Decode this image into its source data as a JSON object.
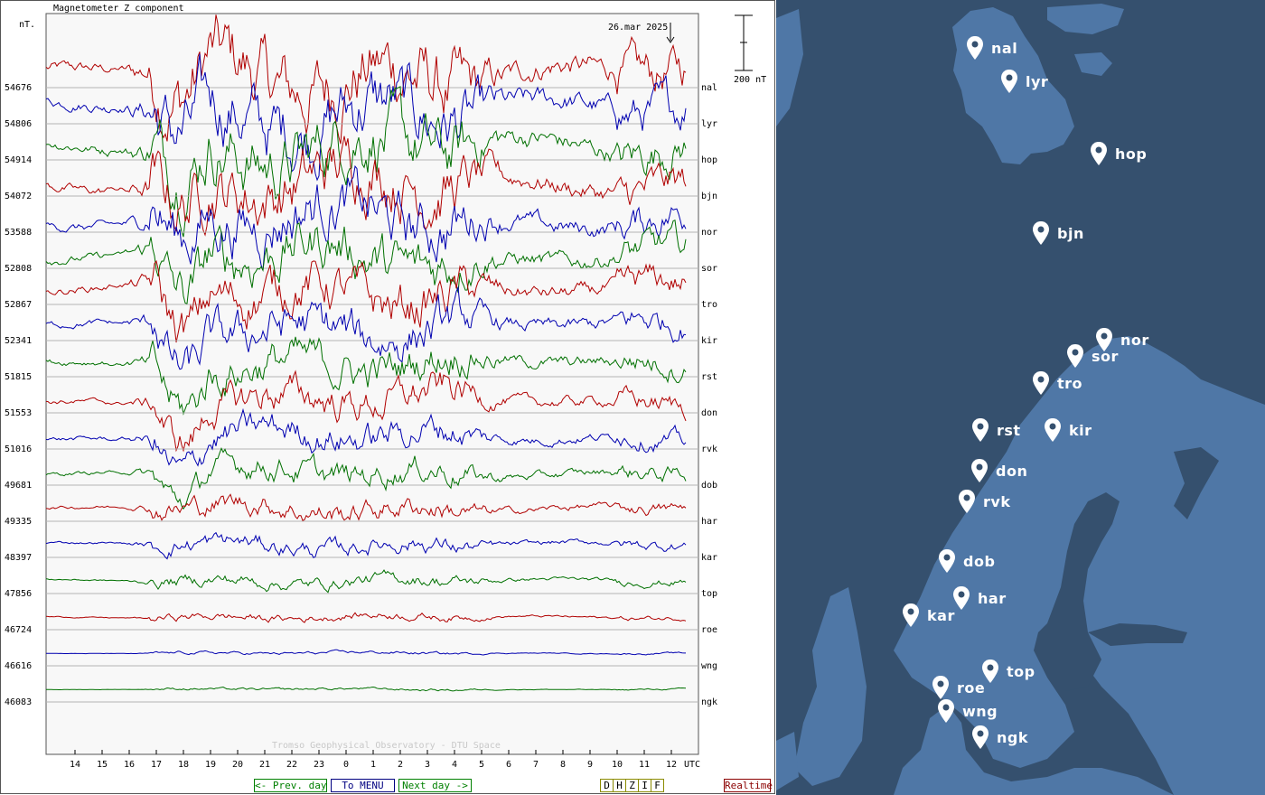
{
  "plot": {
    "title": "Magnetometer Z component",
    "unit_label": "nT.",
    "date": "26.mar 2025",
    "scale_label": "200 nT",
    "watermark": "Tromso Geophysical Observatory - DTU Space",
    "utc_label": "UTC",
    "hour_ticks": [
      "14",
      "15",
      "16",
      "17",
      "18",
      "19",
      "20",
      "21",
      "22",
      "23",
      "0",
      "1",
      "2",
      "3",
      "4",
      "5",
      "6",
      "7",
      "8",
      "9",
      "10",
      "11",
      "12"
    ]
  },
  "stations": [
    {
      "code": "nal",
      "baseline": "54676",
      "color": "#b00000"
    },
    {
      "code": "lyr",
      "baseline": "54806",
      "color": "#0000b0"
    },
    {
      "code": "hop",
      "baseline": "54914",
      "color": "#007000"
    },
    {
      "code": "bjn",
      "baseline": "54072",
      "color": "#b00000"
    },
    {
      "code": "nor",
      "baseline": "53588",
      "color": "#0000b0"
    },
    {
      "code": "sor",
      "baseline": "52808",
      "color": "#007000"
    },
    {
      "code": "tro",
      "baseline": "52867",
      "color": "#b00000"
    },
    {
      "code": "kir",
      "baseline": "52341",
      "color": "#0000b0"
    },
    {
      "code": "rst",
      "baseline": "51815",
      "color": "#007000"
    },
    {
      "code": "don",
      "baseline": "51553",
      "color": "#b00000"
    },
    {
      "code": "rvk",
      "baseline": "51016",
      "color": "#0000b0"
    },
    {
      "code": "dob",
      "baseline": "49681",
      "color": "#007000"
    },
    {
      "code": "har",
      "baseline": "49335",
      "color": "#b00000"
    },
    {
      "code": "kar",
      "baseline": "48397",
      "color": "#0000b0"
    },
    {
      "code": "top",
      "baseline": "47856",
      "color": "#007000"
    },
    {
      "code": "roe",
      "baseline": "46724",
      "color": "#b00000"
    },
    {
      "code": "wng",
      "baseline": "46616",
      "color": "#0000b0"
    },
    {
      "code": "ngk",
      "baseline": "46083",
      "color": "#007000"
    }
  ],
  "nav": {
    "prev_label": "<- Prev. day",
    "menu_label": "To MENU",
    "next_label": "Next day ->",
    "components": [
      "D",
      "H",
      "Z",
      "I",
      "F"
    ],
    "realtime_label": "Realtime"
  },
  "map": {
    "stations": [
      "nal",
      "lyr",
      "hop",
      "bjn",
      "nor",
      "sor",
      "tro",
      "rst",
      "kir",
      "don",
      "rvk",
      "dob",
      "har",
      "kar",
      "top",
      "roe",
      "wng",
      "ngk"
    ]
  },
  "colors": {
    "map_sea": "#35506e",
    "map_land": "#4f77a6",
    "grid": "#b4b4b4",
    "pin": "#ffffff"
  }
}
